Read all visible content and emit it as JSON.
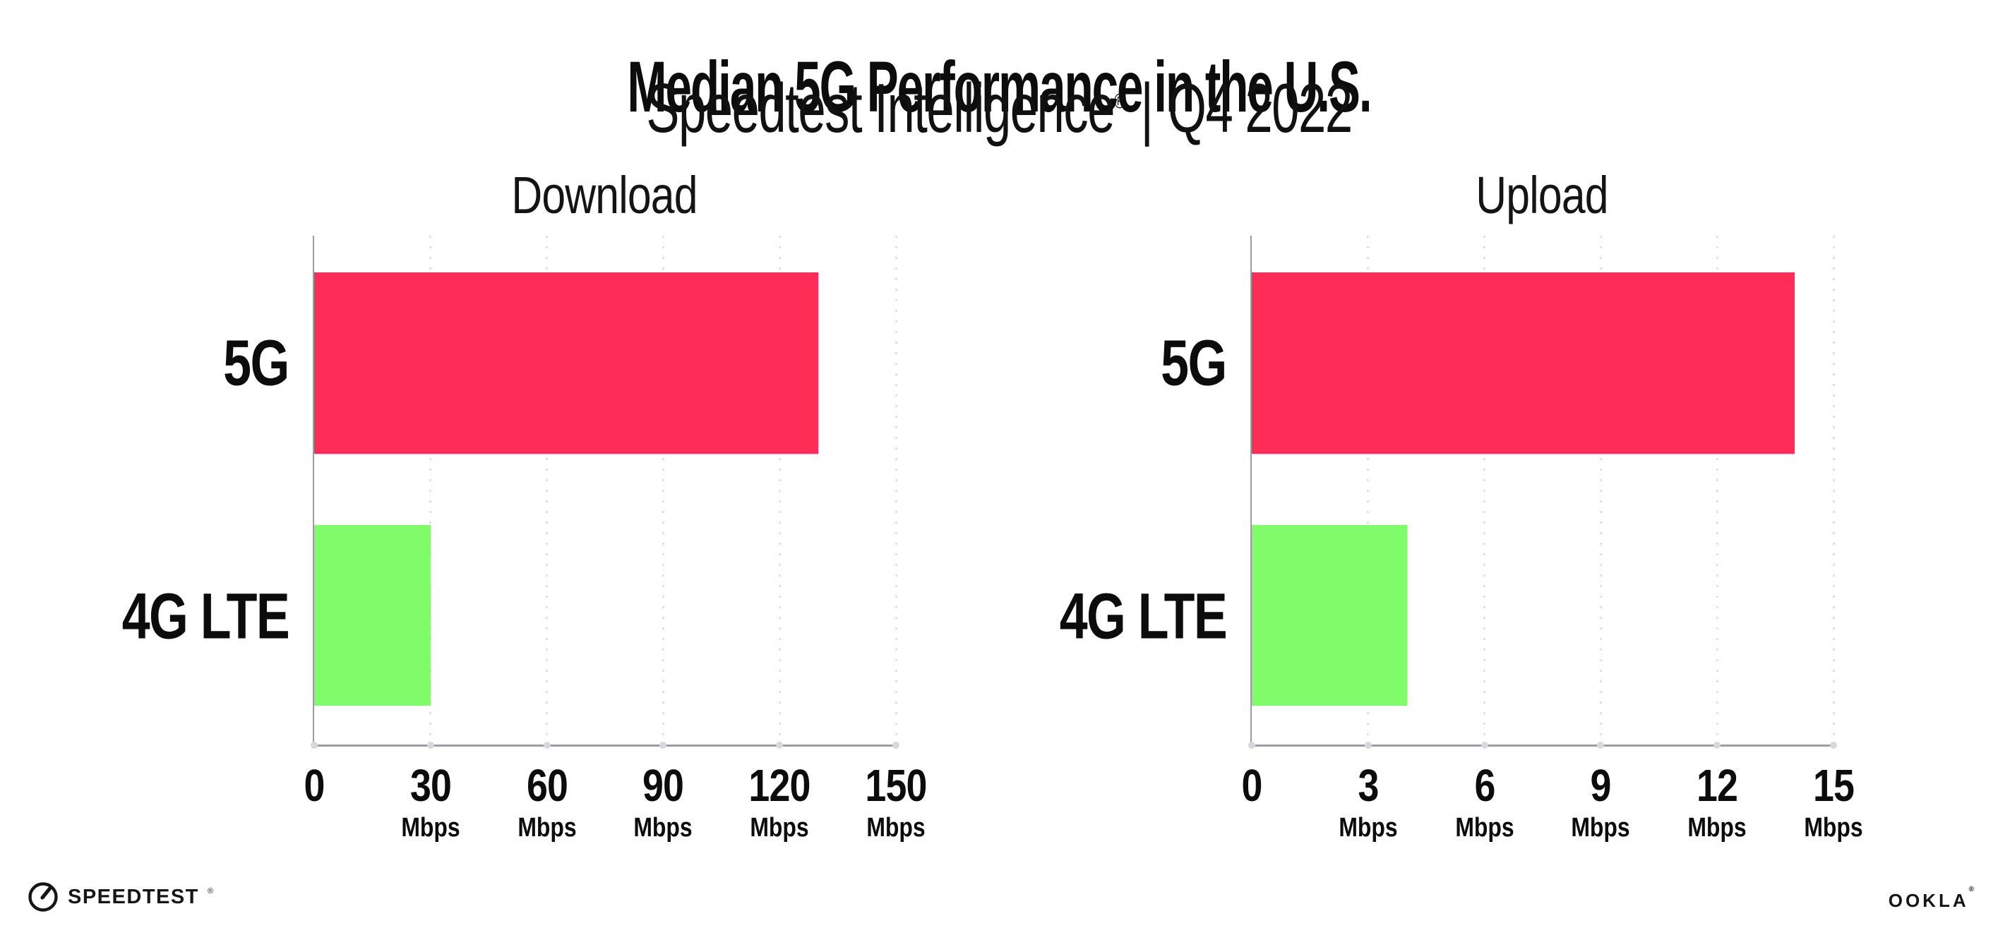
{
  "header": {
    "title": "Median 5G Performance in the U.S.",
    "subtitle_brand": "Speedtest Intelligence",
    "subtitle_reg": "®",
    "subtitle_sep": "|",
    "subtitle_period": "Q4 2022"
  },
  "chart_data": [
    {
      "type": "bar",
      "orientation": "horizontal",
      "title": "Download",
      "categories": [
        "5G",
        "4G LTE"
      ],
      "values": [
        130,
        30
      ],
      "unit": "Mbps",
      "colors": [
        "#FE2D58",
        "#80FB6A"
      ],
      "xlim": [
        0,
        150
      ],
      "xticks": [
        0,
        30,
        60,
        90,
        120,
        150
      ],
      "xtick_labels": [
        {
          "num": "0",
          "unit": ""
        },
        {
          "num": "30",
          "unit": "Mbps"
        },
        {
          "num": "60",
          "unit": "Mbps"
        },
        {
          "num": "90",
          "unit": "Mbps"
        },
        {
          "num": "120",
          "unit": "Mbps"
        },
        {
          "num": "150",
          "unit": "Mbps"
        }
      ],
      "grid": "vertical-dotted",
      "legend": "none"
    },
    {
      "type": "bar",
      "orientation": "horizontal",
      "title": "Upload",
      "categories": [
        "5G",
        "4G LTE"
      ],
      "values": [
        14,
        4
      ],
      "unit": "Mbps",
      "colors": [
        "#FE2D58",
        "#80FB6A"
      ],
      "xlim": [
        0,
        15
      ],
      "xticks": [
        0,
        3,
        6,
        9,
        12,
        15
      ],
      "xtick_labels": [
        {
          "num": "0",
          "unit": ""
        },
        {
          "num": "3",
          "unit": "Mbps"
        },
        {
          "num": "6",
          "unit": "Mbps"
        },
        {
          "num": "9",
          "unit": "Mbps"
        },
        {
          "num": "12",
          "unit": "Mbps"
        },
        {
          "num": "15",
          "unit": "Mbps"
        }
      ],
      "grid": "vertical-dotted",
      "legend": "none"
    }
  ],
  "footer": {
    "speedtest_label": "SPEEDTEST",
    "speedtest_reg": "®",
    "ookla_label": "OOKLA",
    "ookla_reg": "®"
  },
  "style": {
    "bar_red": "#FE2D58",
    "bar_green": "#80FB6A",
    "axis_gray": "#9b9ba1",
    "grid_dot_gray": "#e0e0e9"
  }
}
